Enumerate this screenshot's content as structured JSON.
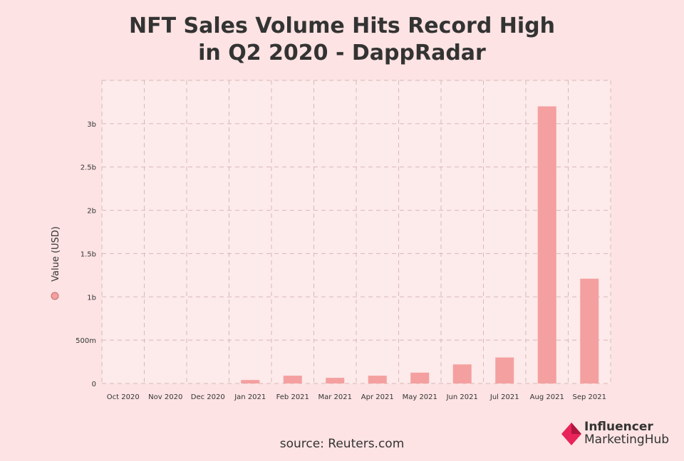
{
  "title_lines": [
    "NFT Sales Volume Hits Record High",
    "in Q2 2020 - DappRadar"
  ],
  "source": "source: Reuters.com",
  "logo": {
    "line1": "Influencer",
    "line2": "MarketingHub"
  },
  "colors": {
    "background": "#fde3e3",
    "plot_background": "#fdeaea",
    "bar": "#f4a0a0",
    "grid": "#d9b8b8",
    "text": "#333333",
    "logo_mark": "#e8245a"
  },
  "chart_data": {
    "type": "bar",
    "title": "NFT Sales Volume Hits Record High in Q2 2020 - DappRadar",
    "xlabel": "",
    "ylabel": "Value (USD)",
    "categories": [
      "Oct 2020",
      "Nov 2020",
      "Dec 2020",
      "Jan 2021",
      "Feb 2021",
      "Mar 2021",
      "Apr 2021",
      "May 2021",
      "Jun 2021",
      "Jul 2021",
      "Aug 2021",
      "Sep 2021"
    ],
    "series": [
      {
        "name": "Value (USD)",
        "values": [
          0,
          0,
          0,
          40000000,
          90000000,
          65000000,
          90000000,
          125000000,
          220000000,
          300000000,
          3200000000,
          1210000000
        ]
      }
    ],
    "ylim": [
      0,
      3500000000
    ],
    "yticks": [
      0,
      500000000,
      1000000000,
      1500000000,
      2000000000,
      2500000000,
      3000000000
    ],
    "ytick_labels": [
      "0",
      "500m",
      "1b",
      "1.5b",
      "2b",
      "2.5b",
      "3b"
    ],
    "grid": true,
    "legend_position": "left"
  }
}
